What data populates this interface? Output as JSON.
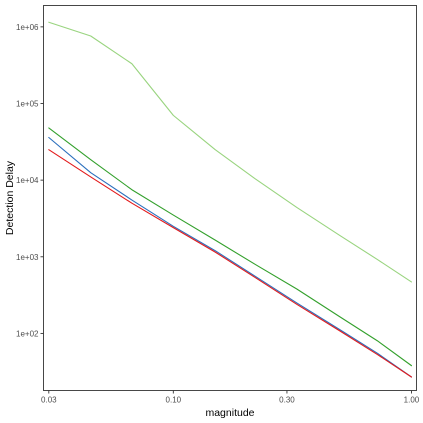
{
  "chart_data": {
    "type": "line",
    "title": "",
    "xlabel": "magnitude",
    "ylabel": "Detection Delay",
    "x_scale": "log",
    "y_scale": "log",
    "xlim": [
      0.0285,
      1.05
    ],
    "ylim": [
      18,
      1900000
    ],
    "grid": false,
    "legend": "none",
    "x_ticks": [
      {
        "value": 0.03,
        "label": "0.03"
      },
      {
        "value": 0.1,
        "label": "0.10"
      },
      {
        "value": 0.3,
        "label": "0.30"
      },
      {
        "value": 1.0,
        "label": "1.00"
      }
    ],
    "y_ticks": [
      {
        "value": 100,
        "label": "1e+02"
      },
      {
        "value": 1000,
        "label": "1e+03"
      },
      {
        "value": 10000,
        "label": "1e+04"
      },
      {
        "value": 100000,
        "label": "1e+05"
      },
      {
        "value": 1000000,
        "label": "1e+06"
      }
    ],
    "x": [
      0.03,
      0.045,
      0.067,
      0.1,
      0.15,
      0.22,
      0.33,
      0.5,
      0.72,
      1.0
    ],
    "series": [
      {
        "color": "#99d47f",
        "values": [
          1150000,
          760000,
          330000,
          70000,
          25000,
          10500,
          4400,
          1900,
          920,
          470
        ]
      },
      {
        "color": "#33a02c",
        "values": [
          48000,
          18500,
          7500,
          3500,
          1650,
          800,
          380,
          165,
          80,
          38
        ]
      },
      {
        "color": "#2b6fbd",
        "values": [
          36000,
          12500,
          5500,
          2500,
          1200,
          560,
          250,
          112,
          55,
          27
        ]
      },
      {
        "color": "#e31a1c",
        "values": [
          25000,
          11000,
          5000,
          2400,
          1150,
          540,
          240,
          108,
          53,
          27
        ]
      }
    ]
  }
}
